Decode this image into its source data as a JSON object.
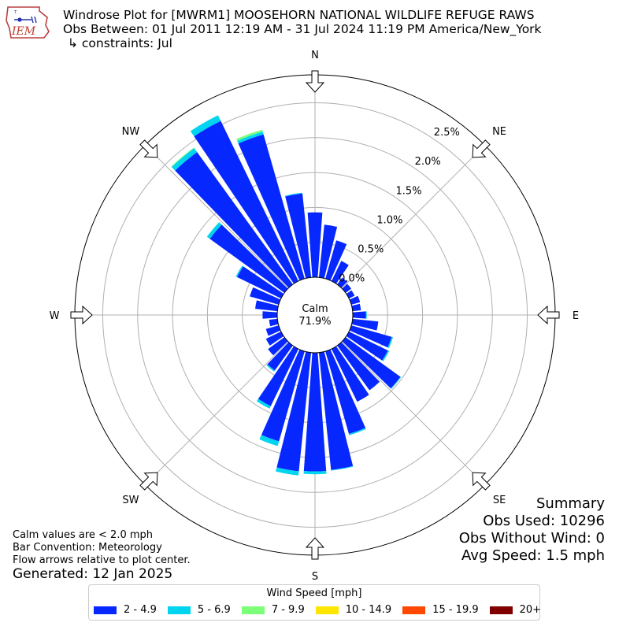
{
  "header": {
    "title": "Windrose Plot for [MWRM1] MOOSEHORN NATIONAL WILDLIFE REFUGE RAWS",
    "subtitle": "Obs Between: 01 Jul 2011 12:19 AM - 31 Jul 2024 11:19 PM America/New_York",
    "constraints": "↳ constraints: Jul",
    "logo_text": "IEM"
  },
  "summary": {
    "heading": "Summary",
    "obs_used": "Obs Used: 10296",
    "obs_without_wind": "Obs Without Wind: 0",
    "avg_speed": "Avg Speed: 1.5 mph"
  },
  "notes": {
    "calm": "Calm values are < 2.0 mph",
    "convention": "Bar Convention: Meteorology",
    "flow": "Flow arrows relative to plot center.",
    "generated": "Generated: 12 Jan 2025"
  },
  "chart_data": {
    "type": "windrose",
    "calm_label": "Calm",
    "calm_value": "71.9%",
    "directions": [
      "N",
      "NE",
      "E",
      "SE",
      "S",
      "SW",
      "W",
      "NW"
    ],
    "radial_ticks": [
      "0.0%",
      "0.5%",
      "1.0%",
      "1.5%",
      "2.0%",
      "2.5%"
    ],
    "radial_max": 2.9,
    "legend_title": "Wind Speed [mph]",
    "speed_bins": [
      {
        "label": "2 - 4.9",
        "color": "#0628ff"
      },
      {
        "label": "5 - 6.9",
        "color": "#00d5f0"
      },
      {
        "label": "7 - 9.9",
        "color": "#7dff7a"
      },
      {
        "label": "10 - 14.9",
        "color": "#ffe600"
      },
      {
        "label": "15 - 19.9",
        "color": "#ff4800"
      },
      {
        "label": "20+",
        "color": "#800000"
      }
    ],
    "sector_width_deg": 10,
    "sectors": [
      {
        "dir": 0,
        "values": [
          0.93,
          0.0,
          0.0
        ]
      },
      {
        "dir": 10,
        "values": [
          0.76,
          0.0,
          0.0
        ]
      },
      {
        "dir": 20,
        "values": [
          0.57,
          0.0,
          0.0
        ]
      },
      {
        "dir": 30,
        "values": [
          0.32,
          0.0,
          0.0
        ]
      },
      {
        "dir": 40,
        "values": [
          0.12,
          0.0,
          0.0
        ]
      },
      {
        "dir": 50,
        "values": [
          0.1,
          0.0,
          0.0
        ]
      },
      {
        "dir": 60,
        "values": [
          0.09,
          0.0,
          0.0
        ]
      },
      {
        "dir": 70,
        "values": [
          0.13,
          0.0,
          0.0
        ]
      },
      {
        "dir": 80,
        "values": [
          0.12,
          0.0,
          0.0
        ]
      },
      {
        "dir": 90,
        "values": [
          0.19,
          0.01,
          0.0
        ]
      },
      {
        "dir": 100,
        "values": [
          0.37,
          0.0,
          0.0
        ]
      },
      {
        "dir": 110,
        "values": [
          0.6,
          0.02,
          0.0
        ]
      },
      {
        "dir": 120,
        "values": [
          0.62,
          0.02,
          0.0
        ]
      },
      {
        "dir": 130,
        "values": [
          0.97,
          0.01,
          0.0
        ]
      },
      {
        "dir": 140,
        "values": [
          0.79,
          0.0,
          0.0
        ]
      },
      {
        "dir": 150,
        "values": [
          0.84,
          0.0,
          0.0
        ]
      },
      {
        "dir": 160,
        "values": [
          1.23,
          0.02,
          0.0
        ]
      },
      {
        "dir": 170,
        "values": [
          1.69,
          0.01,
          0.0
        ]
      },
      {
        "dir": 180,
        "values": [
          1.7,
          0.04,
          0.0
        ]
      },
      {
        "dir": 190,
        "values": [
          1.71,
          0.06,
          0.0
        ]
      },
      {
        "dir": 200,
        "values": [
          1.34,
          0.07,
          0.0
        ]
      },
      {
        "dir": 210,
        "values": [
          0.91,
          0.04,
          0.0
        ]
      },
      {
        "dir": 220,
        "values": [
          0.44,
          0.02,
          0.0
        ]
      },
      {
        "dir": 230,
        "values": [
          0.29,
          0.0,
          0.0
        ]
      },
      {
        "dir": 240,
        "values": [
          0.24,
          0.0,
          0.0
        ]
      },
      {
        "dir": 250,
        "values": [
          0.19,
          0.0,
          0.0
        ]
      },
      {
        "dir": 260,
        "values": [
          0.12,
          0.0,
          0.0
        ]
      },
      {
        "dir": 270,
        "values": [
          0.21,
          0.0,
          0.0
        ]
      },
      {
        "dir": 280,
        "values": [
          0.32,
          0.0,
          0.0
        ]
      },
      {
        "dir": 290,
        "values": [
          0.43,
          0.0,
          0.0
        ]
      },
      {
        "dir": 300,
        "values": [
          0.7,
          0.02,
          0.0
        ]
      },
      {
        "dir": 310,
        "values": [
          1.32,
          0.05,
          0.0
        ]
      },
      {
        "dir": 320,
        "values": [
          2.34,
          0.07,
          0.01
        ]
      },
      {
        "dir": 330,
        "values": [
          2.55,
          0.09,
          0.0
        ]
      },
      {
        "dir": 340,
        "values": [
          2.15,
          0.04,
          0.03
        ]
      },
      {
        "dir": 350,
        "values": [
          1.21,
          0.01,
          0.0
        ]
      }
    ]
  }
}
